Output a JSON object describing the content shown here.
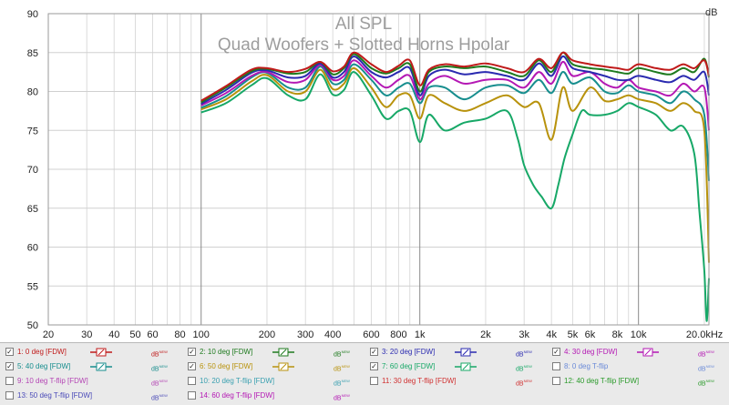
{
  "chart_data": {
    "type": "line",
    "title": "All SPL",
    "subtitle": "Quad Woofers + Slotted Horns Hpolar",
    "ylabel": "dB",
    "xunit": "kHz",
    "xscale": "log",
    "xlim": [
      20,
      21000
    ],
    "ylim": [
      50,
      90
    ],
    "yticks": [
      "90",
      "85",
      "80",
      "75",
      "70",
      "65",
      "60",
      "55",
      "50"
    ],
    "xticks": [
      {
        "v": 20,
        "t": "20"
      },
      {
        "v": 30,
        "t": "30"
      },
      {
        "v": 40,
        "t": "40"
      },
      {
        "v": 50,
        "t": "50"
      },
      {
        "v": 60,
        "t": "60"
      },
      {
        "v": 80,
        "t": "80"
      },
      {
        "v": 100,
        "t": "100"
      },
      {
        "v": 200,
        "t": "200"
      },
      {
        "v": 300,
        "t": "300"
      },
      {
        "v": 400,
        "t": "400"
      },
      {
        "v": 600,
        "t": "600"
      },
      {
        "v": 800,
        "t": "800"
      },
      {
        "v": 1000,
        "t": "1k"
      },
      {
        "v": 2000,
        "t": "2k"
      },
      {
        "v": 3000,
        "t": "3k"
      },
      {
        "v": 4000,
        "t": "4k"
      },
      {
        "v": 5000,
        "t": "5k"
      },
      {
        "v": 6000,
        "t": "6k"
      },
      {
        "v": 8000,
        "t": "8k"
      },
      {
        "v": 10000,
        "t": "10k"
      },
      {
        "v": 20000,
        "t": "20.0kHz"
      }
    ],
    "grid": true,
    "series": [
      {
        "name": "1: 0 deg [FDW]",
        "color": "#c01a1a",
        "x": [
          100,
          130,
          170,
          200,
          250,
          300,
          350,
          400,
          450,
          500,
          600,
          700,
          800,
          900,
          1000,
          1100,
          1300,
          1600,
          2000,
          2500,
          3000,
          3500,
          4000,
          4500,
          5000,
          6000,
          7000,
          8000,
          9000,
          10000,
          12000,
          14000,
          16000,
          18000,
          20000,
          21000
        ],
        "y": [
          78.8,
          80.7,
          82.8,
          83.0,
          82.5,
          82.9,
          83.8,
          82.6,
          83.2,
          85.0,
          83.5,
          82.5,
          83.3,
          84.0,
          80.8,
          82.8,
          83.5,
          83.2,
          83.6,
          83.0,
          82.5,
          84.2,
          83.0,
          85.0,
          84.0,
          83.5,
          83.2,
          83.0,
          82.8,
          83.5,
          83.0,
          82.8,
          83.5,
          83.0,
          84.0,
          82.0
        ]
      },
      {
        "name": "2: 10 deg [FDW]",
        "color": "#1e7a1e",
        "x": [
          100,
          130,
          170,
          200,
          250,
          300,
          350,
          400,
          450,
          500,
          600,
          700,
          800,
          900,
          1000,
          1100,
          1300,
          1600,
          2000,
          2500,
          3000,
          3500,
          4000,
          4500,
          5000,
          6000,
          7000,
          8000,
          9000,
          10000,
          12000,
          14000,
          16000,
          18000,
          20000,
          21000
        ],
        "y": [
          78.6,
          80.5,
          82.6,
          82.9,
          82.3,
          82.5,
          83.8,
          82.2,
          83.0,
          84.8,
          83.0,
          82.3,
          83.0,
          83.5,
          80.0,
          82.5,
          83.2,
          83.0,
          83.2,
          82.5,
          82.0,
          84.0,
          82.5,
          85.0,
          83.5,
          83.0,
          82.8,
          82.5,
          82.3,
          83.0,
          82.5,
          82.2,
          83.0,
          82.5,
          84.2,
          81.8
        ]
      },
      {
        "name": "3: 20 deg [FDW]",
        "color": "#2a2ab0",
        "x": [
          100,
          130,
          170,
          200,
          250,
          300,
          350,
          400,
          450,
          500,
          600,
          700,
          800,
          900,
          1000,
          1100,
          1300,
          1600,
          2000,
          2500,
          3000,
          3500,
          4000,
          4500,
          5000,
          6000,
          7000,
          8000,
          9000,
          10000,
          12000,
          14000,
          16000,
          18000,
          20000,
          21000
        ],
        "y": [
          78.4,
          80.2,
          82.4,
          82.7,
          81.8,
          82.0,
          83.6,
          81.8,
          82.5,
          84.5,
          82.5,
          81.8,
          82.5,
          83.0,
          79.5,
          82.0,
          82.8,
          82.2,
          82.5,
          82.0,
          81.5,
          83.6,
          82.0,
          84.5,
          83.0,
          82.5,
          82.0,
          81.5,
          81.5,
          82.0,
          81.5,
          81.2,
          82.0,
          81.5,
          82.5,
          79.5
        ]
      },
      {
        "name": "4: 30 deg [FDW]",
        "color": "#b418b4",
        "x": [
          100,
          130,
          170,
          200,
          250,
          300,
          350,
          400,
          450,
          500,
          600,
          700,
          800,
          900,
          1000,
          1100,
          1300,
          1600,
          2000,
          2500,
          3000,
          3500,
          4000,
          4500,
          5000,
          6000,
          7000,
          8000,
          9000,
          10000,
          12000,
          14000,
          16000,
          18000,
          20000,
          21000
        ],
        "y": [
          78.2,
          79.8,
          82.0,
          82.5,
          81.2,
          81.5,
          83.4,
          81.5,
          82.0,
          84.0,
          82.0,
          80.5,
          81.5,
          82.0,
          79.0,
          81.0,
          82.0,
          81.0,
          81.5,
          81.5,
          80.5,
          82.5,
          81.0,
          83.8,
          82.0,
          82.5,
          81.0,
          80.5,
          81.5,
          80.5,
          80.0,
          79.5,
          81.0,
          80.0,
          80.5,
          75.0
        ]
      },
      {
        "name": "5: 40 deg [FDW]",
        "color": "#178e8e",
        "x": [
          100,
          130,
          170,
          200,
          250,
          300,
          350,
          400,
          450,
          500,
          600,
          700,
          800,
          900,
          1000,
          1100,
          1300,
          1600,
          2000,
          2500,
          3000,
          3500,
          4000,
          4500,
          5000,
          6000,
          7000,
          8000,
          9000,
          10000,
          12000,
          14000,
          16000,
          18000,
          20000,
          21000
        ],
        "y": [
          77.9,
          79.4,
          81.8,
          82.4,
          80.5,
          80.5,
          83.2,
          81.0,
          81.5,
          83.5,
          81.5,
          79.5,
          80.5,
          81.0,
          78.5,
          80.5,
          80.5,
          79.0,
          80.5,
          80.8,
          79.8,
          81.5,
          79.8,
          82.5,
          81.0,
          81.8,
          80.0,
          79.8,
          80.8,
          80.0,
          79.5,
          78.5,
          80.0,
          79.0,
          77.0,
          68.5
        ]
      },
      {
        "name": "6: 50 deg [FDW]",
        "color": "#b8920c",
        "x": [
          100,
          130,
          170,
          200,
          250,
          300,
          350,
          400,
          450,
          500,
          600,
          700,
          800,
          900,
          1000,
          1100,
          1300,
          1600,
          2000,
          2500,
          3000,
          3500,
          4000,
          4500,
          5000,
          6000,
          7000,
          8000,
          9000,
          10000,
          12000,
          14000,
          16000,
          18000,
          20000,
          21000
        ],
        "y": [
          77.7,
          79.0,
          81.3,
          82.1,
          80.0,
          80.0,
          82.8,
          80.3,
          81.0,
          83.0,
          80.5,
          78.0,
          79.5,
          79.5,
          76.5,
          79.5,
          78.5,
          77.5,
          78.5,
          79.5,
          78.0,
          78.5,
          73.8,
          80.5,
          77.5,
          80.5,
          78.8,
          79.0,
          79.5,
          79.0,
          78.5,
          77.5,
          78.5,
          77.5,
          75.0,
          58.0
        ]
      },
      {
        "name": "7: 60 deg [FDW]",
        "color": "#17a867",
        "x": [
          100,
          130,
          170,
          200,
          250,
          300,
          350,
          400,
          450,
          500,
          600,
          700,
          800,
          900,
          1000,
          1100,
          1300,
          1600,
          2000,
          2500,
          2800,
          3000,
          3300,
          3600,
          4000,
          4300,
          4600,
          5000,
          5500,
          6000,
          7000,
          8000,
          9000,
          10000,
          12000,
          14000,
          16000,
          18000,
          19000,
          20000,
          20500,
          21000
        ],
        "y": [
          77.3,
          78.5,
          80.8,
          81.7,
          79.5,
          79.0,
          82.2,
          79.6,
          80.2,
          82.5,
          79.5,
          76.5,
          77.5,
          77.5,
          73.5,
          77.0,
          75.0,
          76.0,
          76.5,
          77.5,
          74.0,
          70.5,
          68.0,
          66.5,
          65.0,
          68.0,
          71.5,
          74.5,
          77.5,
          77.0,
          77.0,
          77.5,
          78.5,
          78.0,
          77.0,
          75.0,
          75.5,
          72.0,
          64.5,
          57.0,
          50.5,
          56.0
        ]
      }
    ]
  },
  "legend": [
    {
      "label": "1: 0 deg [FDW]",
      "checked": true,
      "color": "#c01a1a",
      "unit": "dB",
      "sup": "NEW",
      "unit_color": "#c01a1a",
      "check": "✓"
    },
    {
      "label": "2: 10 deg [FDW]",
      "checked": true,
      "color": "#1e7a1e",
      "unit": "dB",
      "sup": "NEW",
      "unit_color": "#1e7a1e",
      "check": "✓"
    },
    {
      "label": "3: 20 deg [FDW]",
      "checked": true,
      "color": "#2a2ab0",
      "unit": "dB",
      "sup": "NEW",
      "unit_color": "#2a2ab0",
      "check": "✓"
    },
    {
      "label": "4: 30 deg [FDW]",
      "checked": true,
      "color": "#b418b4",
      "unit": "dB",
      "sup": "NEW",
      "unit_color": "#b418b4",
      "check": "✓"
    },
    {
      "label": "5: 40 deg [FDW]",
      "checked": true,
      "color": "#178e8e",
      "unit": "dB",
      "sup": "NEW",
      "unit_color": "#178e8e",
      "check": "✓"
    },
    {
      "label": "6: 50 deg [FDW]",
      "checked": true,
      "color": "#b8920c",
      "unit": "dB",
      "sup": "NEW",
      "unit_color": "#b8920c",
      "check": "✓"
    },
    {
      "label": "7: 60 deg [FDW]",
      "checked": true,
      "color": "#17a867",
      "unit": "dB",
      "sup": "NEW",
      "unit_color": "#17a867",
      "check": "✓"
    },
    {
      "label": "8: 0 deg T-flip",
      "checked": false,
      "color": "#6a8ad8",
      "unit": "dB",
      "sup": "NEW",
      "unit_color": "#6a8ad8",
      "check": ""
    },
    {
      "label": "9: 10 deg T-flip [FDW]",
      "checked": false,
      "color": "#b445b4",
      "unit": "dB",
      "sup": "NEW",
      "unit_color": "#b445b4",
      "check": ""
    },
    {
      "label": "10: 20 deg T-flip [FDW]",
      "checked": false,
      "color": "#3aa0b0",
      "unit": "dB",
      "sup": "NEW",
      "unit_color": "#3aa0b0",
      "check": ""
    },
    {
      "label": "11: 30 deg T-flip [FDW]",
      "checked": false,
      "color": "#d03030",
      "unit": "dB",
      "sup": "NEW",
      "unit_color": "#d03030",
      "check": ""
    },
    {
      "label": "12: 40 deg T-flip [FDW]",
      "checked": false,
      "color": "#2a9a2a",
      "unit": "dB",
      "sup": "NEW",
      "unit_color": "#2a9a2a",
      "check": ""
    },
    {
      "label": "13: 50 deg T-flip [FDW]",
      "checked": false,
      "color": "#4a4ab8",
      "unit": "dB",
      "sup": "NEW",
      "unit_color": "#4a4ab8",
      "check": ""
    },
    {
      "label": "14: 60 deg T-flip [FDW]",
      "checked": false,
      "color": "#b418b4",
      "unit": "dB",
      "sup": "NEW",
      "unit_color": "#b418b4",
      "check": ""
    }
  ]
}
